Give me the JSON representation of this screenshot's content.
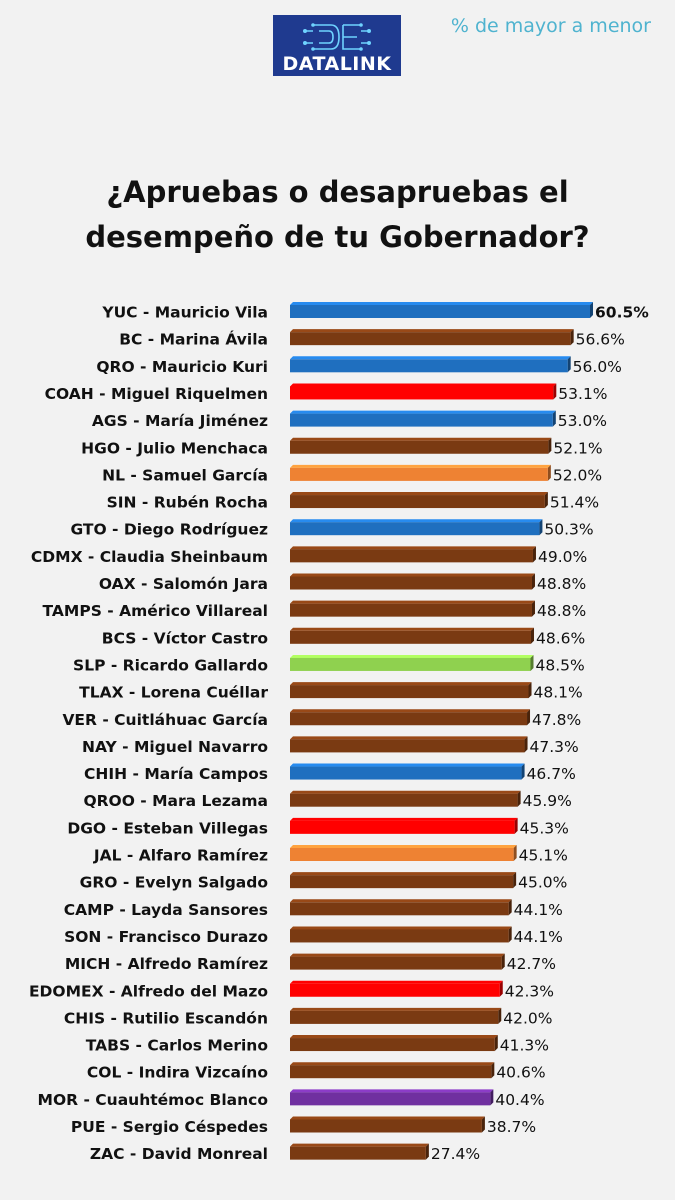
{
  "header": {
    "logo_text": "DATALINK",
    "subtitle": "% de mayor a menor"
  },
  "colors": {
    "background": "#f2f2f2",
    "logo_bg": "#1f3a8f",
    "subtitle": "#4fb3cf",
    "PAN": "#1f6fbf",
    "MORENA": "#7a3a12",
    "PRI": "#ff0000",
    "MC": "#ee8233",
    "PVEM": "#8fd14f",
    "PES": "#7030a0"
  },
  "chart_data": {
    "type": "bar",
    "orientation": "horizontal",
    "title": "¿Apruebas o desapruebas el desempeño de tu Gobernador?",
    "title_lines": [
      "¿Apruebas o desapruebas el",
      "desempeño de tu Gobernador?"
    ],
    "xlim": [
      0,
      60.5
    ],
    "grid": false,
    "legend": "none",
    "categories": [
      "YUC - Mauricio Vila",
      "BC - Marina Ávila",
      "QRO - Mauricio Kuri",
      "COAH - Miguel Riquelmen",
      "AGS - María Jiménez",
      "HGO - Julio Menchaca",
      "NL - Samuel García",
      "SIN - Rubén Rocha",
      "GTO - Diego Rodríguez",
      "CDMX - Claudia Sheinbaum",
      "OAX - Salomón Jara",
      "TAMPS - Américo Villareal",
      "BCS - Víctor Castro",
      "SLP - Ricardo Gallardo",
      "TLAX - Lorena Cuéllar",
      "VER - Cuitláhuac García",
      "NAY - Miguel Navarro",
      "CHIH - María Campos",
      "QROO - Mara Lezama",
      "DGO - Esteban Villegas",
      "JAL - Alfaro Ramírez",
      "GRO - Evelyn Salgado",
      "CAMP - Layda Sansores",
      "SON - Francisco Durazo",
      "MICH - Alfredo Ramírez",
      "EDOMEX - Alfredo del Mazo",
      "CHIS - Rutilio Escandón",
      "TABS - Carlos Merino",
      "COL - Indira Vizcaíno",
      "MOR - Cuauhtémoc Blanco",
      "PUE - Sergio Céspedes",
      "ZAC - David Monreal"
    ],
    "values": [
      60.5,
      56.6,
      56.0,
      53.1,
      53.0,
      52.1,
      52.0,
      51.4,
      50.3,
      49.0,
      48.8,
      48.8,
      48.6,
      48.5,
      48.1,
      47.8,
      47.3,
      46.7,
      45.9,
      45.3,
      45.1,
      45.0,
      44.1,
      44.1,
      42.7,
      42.3,
      42.0,
      41.3,
      40.6,
      40.4,
      38.7,
      27.4
    ],
    "value_labels": [
      "60.5%",
      "56.6%",
      "56.0%",
      "53.1%",
      "53.0%",
      "52.1%",
      "52.0%",
      "51.4%",
      "50.3%",
      "49.0%",
      "48.8%",
      "48.8%",
      "48.6%",
      "48.5%",
      "48.1%",
      "47.8%",
      "47.3%",
      "46.7%",
      "45.9%",
      "45.3%",
      "45.1%",
      "45.0%",
      "44.1%",
      "44.1%",
      "42.7%",
      "42.3%",
      "42.0%",
      "41.3%",
      "40.6%",
      "40.4%",
      "38.7%",
      "27.4%"
    ],
    "bar_colors": [
      "#1f6fbf",
      "#7a3a12",
      "#1f6fbf",
      "#ff0000",
      "#1f6fbf",
      "#7a3a12",
      "#ee8233",
      "#7a3a12",
      "#1f6fbf",
      "#7a3a12",
      "#7a3a12",
      "#7a3a12",
      "#7a3a12",
      "#8fd14f",
      "#7a3a12",
      "#7a3a12",
      "#7a3a12",
      "#1f6fbf",
      "#7a3a12",
      "#ff0000",
      "#ee8233",
      "#7a3a12",
      "#7a3a12",
      "#7a3a12",
      "#7a3a12",
      "#ff0000",
      "#7a3a12",
      "#7a3a12",
      "#7a3a12",
      "#7030a0",
      "#7a3a12",
      "#7a3a12"
    ]
  }
}
